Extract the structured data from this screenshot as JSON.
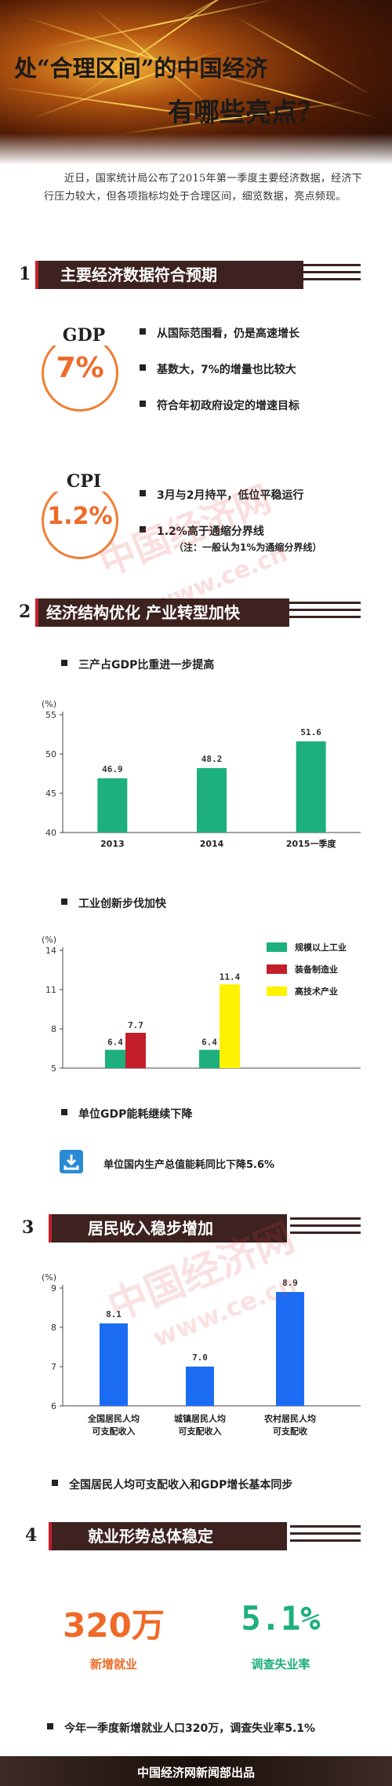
{
  "header": {
    "title_line1": "处“合理区间”的中国经济",
    "title_line2": "有哪些亮点？"
  },
  "intro": "近日，国家统计局公布了2015年第一季度主要经济数据，经济下行压力较大，但各项指标均处于合理区间，细览数据，亮点频现。",
  "sections": {
    "s1": {
      "num": "1",
      "title": "主要经济数据符合预期"
    },
    "s2": {
      "num": "2",
      "title": "经济结构优化 产业转型加快"
    },
    "s3": {
      "num": "3",
      "title": "居民收入稳步增加"
    },
    "s4": {
      "num": "4",
      "title": "就业形势总体稳定"
    }
  },
  "gdp": {
    "label": "GDP",
    "value": "7%",
    "bullets": [
      "从国际范围看，仍是高速增长",
      "基数大，7%的增量也比较大",
      "符合年初政府设定的增速目标"
    ]
  },
  "cpi": {
    "label": "CPI",
    "value": "1.2%",
    "bullets": [
      "3月与2月持平，低位平稳运行",
      "1.2%高于通缩分界线"
    ],
    "note": "（注：一般认为1%为通缩分界线）"
  },
  "chart1_title": "三产占GDP比重进一步提高",
  "chart2_title": "工业创新步伐加快",
  "energy": {
    "title": "单位GDP能耗继续下降",
    "text": "单位国内生产总值能耗同比下降5.6%"
  },
  "income_note": "全国居民人均可支配收入和GDP增长基本同步",
  "employment": {
    "new_jobs_value": "320万",
    "new_jobs_label": "新增就业",
    "unemp_value": "5.1%",
    "unemp_label": "调查失业率",
    "summary": "今年一季度新增就业人口320万，调查失业率5.1%"
  },
  "watermark": {
    "text1": "中国经济网",
    "text2": "www.ce.cn"
  },
  "footer": "中国经济网新闻部出品",
  "colors": {
    "green": "#1daf7c",
    "red": "#c21f2a",
    "yellow": "#fff200",
    "blue": "#1b6cf2",
    "orange": "#ef6a27",
    "brown": "#3d2220"
  },
  "chart_data": [
    {
      "type": "bar",
      "title": "三产占GDP比重进一步提高",
      "ylabel": "(%)",
      "categories": [
        "2013",
        "2014",
        "2015一季度"
      ],
      "values": [
        46.9,
        48.2,
        51.6
      ],
      "ylim": [
        40,
        55
      ],
      "yticks": [
        40,
        45,
        50,
        55
      ],
      "color": "#1daf7c"
    },
    {
      "type": "bar",
      "title": "工业创新步伐加快",
      "ylabel": "(%)",
      "categories": [
        "",
        ""
      ],
      "series": [
        {
          "name": "规模以上工业",
          "values": [
            6.4,
            6.4
          ],
          "color": "#1daf7c"
        },
        {
          "name": "装备制造业",
          "values": [
            7.7,
            null
          ],
          "color": "#c21f2a"
        },
        {
          "name": "高技术产业",
          "values": [
            null,
            11.4
          ],
          "color": "#fff200"
        }
      ],
      "ylim": [
        5,
        14
      ],
      "yticks": [
        5,
        8,
        11,
        14
      ],
      "legend": "top-right"
    },
    {
      "type": "bar",
      "title": "居民收入稳步增加",
      "ylabel": "(%)",
      "categories": [
        "全国居民人均可支配收入",
        "城镇居民人均可支配收入",
        "农村居民人均可支配收入"
      ],
      "category_lines": [
        [
          "全国居民人均",
          "可支配收入"
        ],
        [
          "城镇居民人均",
          "可支配收入"
        ],
        [
          "农村居民人均",
          "可支配收"
        ]
      ],
      "values": [
        8.1,
        7.0,
        8.9
      ],
      "ylim": [
        6,
        9
      ],
      "yticks": [
        6,
        7,
        8,
        9
      ],
      "color": "#1b6cf2"
    }
  ]
}
